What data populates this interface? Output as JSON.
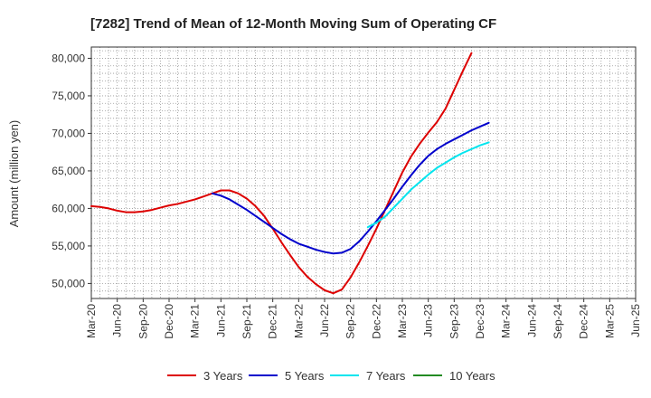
{
  "chart_data": {
    "type": "line",
    "title": "[7282]  Trend of Mean of 12-Month Moving Sum of Operating CF",
    "xlabel": "",
    "ylabel": "Amount (million yen)",
    "ylim": [
      48000,
      81500
    ],
    "yticks": [
      50000,
      55000,
      60000,
      65000,
      70000,
      75000,
      80000
    ],
    "ytick_labels": [
      "50,000",
      "55,000",
      "60,000",
      "65,000",
      "70,000",
      "75,000",
      "80,000"
    ],
    "x_labels": [
      "Mar-20",
      "Jun-20",
      "Sep-20",
      "Dec-20",
      "Mar-21",
      "Jun-21",
      "Sep-21",
      "Dec-21",
      "Mar-22",
      "Jun-22",
      "Sep-22",
      "Dec-22",
      "Mar-23",
      "Jun-23",
      "Sep-23",
      "Dec-23",
      "Mar-24",
      "Jun-24",
      "Sep-24",
      "Dec-24",
      "Mar-25",
      "Jun-25"
    ],
    "grid": true,
    "legend_position": "bottom",
    "series": [
      {
        "name": "3 Years",
        "color": "#dd0000",
        "start_index": 0,
        "values": [
          60300,
          60200,
          60000,
          59700,
          59500,
          59500,
          59600,
          59800,
          60100,
          60400,
          60600,
          60900,
          61200,
          61600,
          62000,
          62400,
          62400,
          62000,
          61300,
          60300,
          59000,
          57300,
          55500,
          53800,
          52200,
          50900,
          49900,
          49100,
          48700,
          49200,
          50800,
          52800,
          55000,
          57300,
          59800,
          62300,
          64800,
          66900,
          68600,
          70100,
          71500,
          73300,
          75800,
          78300,
          80700
        ]
      },
      {
        "name": "5 Years",
        "color": "#0000cc",
        "start_index": 14,
        "values": [
          62000,
          61700,
          61200,
          60500,
          59800,
          59000,
          58200,
          57400,
          56600,
          55900,
          55300,
          54900,
          54500,
          54200,
          54000,
          54100,
          54600,
          55600,
          56900,
          58300,
          59800,
          61300,
          62900,
          64400,
          65800,
          67000,
          67900,
          68600,
          69200,
          69800,
          70400,
          70900,
          71400
        ]
      },
      {
        "name": "7 Years",
        "color": "#00e5ee",
        "start_index": 32,
        "values": [
          57500,
          58100,
          58900,
          60100,
          61300,
          62500,
          63500,
          64500,
          65400,
          66100,
          66800,
          67400,
          67900,
          68400,
          68800
        ]
      },
      {
        "name": "10 Years",
        "color": "#228b22",
        "start_index": 0,
        "values": []
      }
    ]
  }
}
